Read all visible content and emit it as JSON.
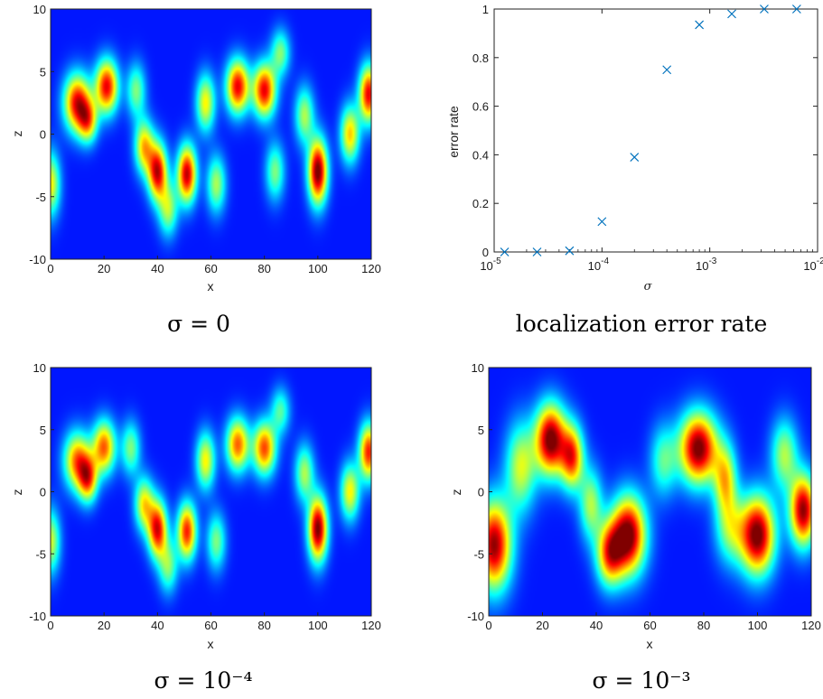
{
  "captions": {
    "top_left": "σ = 0",
    "top_right": "localization error rate",
    "bottom_left": "σ = 10⁻⁴",
    "bottom_right": "σ = 10⁻³"
  },
  "chart_data": [
    {
      "type": "heatmap",
      "id": "heatmap_sigma_0",
      "caption": "σ = 0",
      "xlabel": "x",
      "ylabel": "z",
      "xlim": [
        0,
        120
      ],
      "ylim": [
        -10,
        10
      ],
      "xticks": [
        "0",
        "20",
        "40",
        "60",
        "80",
        "100",
        "120"
      ],
      "yticks": [
        "10",
        "5",
        "0",
        "-5",
        "-10"
      ],
      "colormap": "jet",
      "blobs": [
        {
          "x": 10,
          "z": 2.5,
          "w": 0.85,
          "sx": 3.5,
          "sz": 1.6
        },
        {
          "x": 14,
          "z": 1.0,
          "w": 0.55,
          "sx": 2.5,
          "sz": 1.2
        },
        {
          "x": 21,
          "z": 3.8,
          "w": 0.85,
          "sx": 3.0,
          "sz": 1.5
        },
        {
          "x": 32,
          "z": 3.5,
          "w": 0.4,
          "sx": 2.5,
          "sz": 1.5
        },
        {
          "x": 35,
          "z": -1.0,
          "w": 0.6,
          "sx": 2.5,
          "sz": 1.5
        },
        {
          "x": 40,
          "z": -3.0,
          "w": 0.88,
          "sx": 2.5,
          "sz": 1.6
        },
        {
          "x": 44,
          "z": -6.0,
          "w": 0.45,
          "sx": 2.5,
          "sz": 1.5
        },
        {
          "x": 51,
          "z": -3.2,
          "w": 0.9,
          "sx": 2.5,
          "sz": 1.6
        },
        {
          "x": 58,
          "z": 2.5,
          "w": 0.55,
          "sx": 2.5,
          "sz": 1.6
        },
        {
          "x": 62,
          "z": -4.0,
          "w": 0.45,
          "sx": 2.5,
          "sz": 1.6
        },
        {
          "x": 70,
          "z": 3.8,
          "w": 0.85,
          "sx": 3.0,
          "sz": 1.5
        },
        {
          "x": 80,
          "z": 3.5,
          "w": 0.85,
          "sx": 3.0,
          "sz": 1.5
        },
        {
          "x": 84,
          "z": -3.0,
          "w": 0.4,
          "sx": 2.5,
          "sz": 1.6
        },
        {
          "x": 86,
          "z": 6.5,
          "w": 0.4,
          "sx": 2.5,
          "sz": 1.3
        },
        {
          "x": 95,
          "z": 1.5,
          "w": 0.45,
          "sx": 2.5,
          "sz": 1.6
        },
        {
          "x": 100,
          "z": -3.0,
          "w": 1.0,
          "sx": 2.5,
          "sz": 1.8
        },
        {
          "x": 112,
          "z": 0.0,
          "w": 0.6,
          "sx": 2.5,
          "sz": 1.6
        },
        {
          "x": 119,
          "z": 3.2,
          "w": 0.85,
          "sx": 2.5,
          "sz": 1.6
        },
        {
          "x": 0,
          "z": -4.0,
          "w": 0.55,
          "sx": 2.5,
          "sz": 1.8
        }
      ]
    },
    {
      "type": "scatter",
      "id": "error_rate",
      "caption": "localization error rate",
      "xlabel": "σ",
      "ylabel": "error rate",
      "xscale": "log",
      "xlim": [
        1e-05,
        0.01
      ],
      "ylim": [
        0,
        1
      ],
      "xticks": [
        {
          "value": 1e-05,
          "base": "10",
          "exp": "-5"
        },
        {
          "value": 0.0001,
          "base": "10",
          "exp": "-4"
        },
        {
          "value": 0.001,
          "base": "10",
          "exp": "-3"
        },
        {
          "value": 0.01,
          "base": "10",
          "exp": "-2"
        }
      ],
      "yticks": [
        "0",
        "0.2",
        "0.4",
        "0.6",
        "0.8",
        "1"
      ],
      "marker": "x",
      "color": "#0072BD",
      "x": [
        1.25e-05,
        2.5e-05,
        5e-05,
        0.0001,
        0.0002,
        0.0004,
        0.0008,
        0.0016,
        0.0032,
        0.0064
      ],
      "y": [
        0.0,
        0.0,
        0.005,
        0.125,
        0.39,
        0.75,
        0.935,
        0.98,
        1.0,
        1.0
      ]
    },
    {
      "type": "heatmap",
      "id": "heatmap_sigma_1e-4",
      "caption": "σ = 10⁻⁴",
      "xlabel": "x",
      "ylabel": "z",
      "xlim": [
        0,
        120
      ],
      "ylim": [
        -10,
        10
      ],
      "xticks": [
        "0",
        "20",
        "40",
        "60",
        "80",
        "100",
        "120"
      ],
      "yticks": [
        "10",
        "5",
        "0",
        "-5",
        "-10"
      ],
      "colormap": "jet",
      "blobs": [
        {
          "x": 10,
          "z": 2.5,
          "w": 0.7,
          "sx": 3.5,
          "sz": 1.6
        },
        {
          "x": 14,
          "z": 1.0,
          "w": 0.65,
          "sx": 2.5,
          "sz": 1.3
        },
        {
          "x": 20,
          "z": 3.6,
          "w": 0.72,
          "sx": 3.0,
          "sz": 1.5
        },
        {
          "x": 30,
          "z": 3.5,
          "w": 0.4,
          "sx": 2.5,
          "sz": 1.5
        },
        {
          "x": 35,
          "z": -1.0,
          "w": 0.55,
          "sx": 2.5,
          "sz": 1.5
        },
        {
          "x": 40,
          "z": -3.0,
          "w": 0.85,
          "sx": 2.5,
          "sz": 1.6
        },
        {
          "x": 44,
          "z": -6.0,
          "w": 0.4,
          "sx": 2.5,
          "sz": 1.5
        },
        {
          "x": 51,
          "z": -3.2,
          "w": 0.8,
          "sx": 2.5,
          "sz": 1.6
        },
        {
          "x": 58,
          "z": 2.5,
          "w": 0.55,
          "sx": 2.5,
          "sz": 1.6
        },
        {
          "x": 62,
          "z": -4.0,
          "w": 0.4,
          "sx": 2.5,
          "sz": 1.6
        },
        {
          "x": 70,
          "z": 3.8,
          "w": 0.72,
          "sx": 3.0,
          "sz": 1.5
        },
        {
          "x": 80,
          "z": 3.5,
          "w": 0.75,
          "sx": 3.0,
          "sz": 1.5
        },
        {
          "x": 86,
          "z": 6.5,
          "w": 0.35,
          "sx": 2.5,
          "sz": 1.3
        },
        {
          "x": 95,
          "z": 1.5,
          "w": 0.45,
          "sx": 2.5,
          "sz": 1.6
        },
        {
          "x": 100,
          "z": -3.0,
          "w": 0.98,
          "sx": 2.5,
          "sz": 1.8
        },
        {
          "x": 112,
          "z": 0.0,
          "w": 0.55,
          "sx": 2.5,
          "sz": 1.6
        },
        {
          "x": 119,
          "z": 3.2,
          "w": 0.8,
          "sx": 2.5,
          "sz": 1.6
        },
        {
          "x": 0,
          "z": -4.0,
          "w": 0.5,
          "sx": 2.5,
          "sz": 1.8
        }
      ]
    },
    {
      "type": "heatmap",
      "id": "heatmap_sigma_1e-3",
      "caption": "σ = 10⁻³",
      "xlabel": "x",
      "ylabel": "z",
      "xlim": [
        0,
        120
      ],
      "ylim": [
        -10,
        10
      ],
      "xticks": [
        "0",
        "20",
        "40",
        "60",
        "80",
        "100",
        "120"
      ],
      "yticks": [
        "10",
        "5",
        "0",
        "-5",
        "-10"
      ],
      "colormap": "jet",
      "blobs": [
        {
          "x": 2,
          "z": -4.3,
          "w": 0.95,
          "sx": 4.5,
          "sz": 2.5
        },
        {
          "x": 12,
          "z": 2.0,
          "w": 0.5,
          "sx": 4.0,
          "sz": 2.5
        },
        {
          "x": 23,
          "z": 4.2,
          "w": 1.0,
          "sx": 4.0,
          "sz": 2.0
        },
        {
          "x": 31,
          "z": 2.8,
          "w": 0.75,
          "sx": 3.0,
          "sz": 1.8
        },
        {
          "x": 38,
          "z": -1.0,
          "w": 0.45,
          "sx": 3.0,
          "sz": 2.0
        },
        {
          "x": 52,
          "z": -3.5,
          "w": 1.0,
          "sx": 4.5,
          "sz": 2.2
        },
        {
          "x": 45,
          "z": -5.0,
          "w": 0.7,
          "sx": 3.5,
          "sz": 1.8
        },
        {
          "x": 65,
          "z": 2.5,
          "w": 0.35,
          "sx": 3.5,
          "sz": 2.0
        },
        {
          "x": 78,
          "z": 3.5,
          "w": 1.0,
          "sx": 5.0,
          "sz": 2.0
        },
        {
          "x": 88,
          "z": 1.0,
          "w": 0.55,
          "sx": 3.0,
          "sz": 2.0
        },
        {
          "x": 100,
          "z": -3.5,
          "w": 1.0,
          "sx": 4.5,
          "sz": 2.2
        },
        {
          "x": 110,
          "z": 3.0,
          "w": 0.45,
          "sx": 3.5,
          "sz": 2.0
        },
        {
          "x": 117,
          "z": -1.5,
          "w": 0.95,
          "sx": 3.5,
          "sz": 2.0
        },
        {
          "x": 90,
          "z": -3.0,
          "w": 0.4,
          "sx": 4.0,
          "sz": 2.0
        }
      ]
    }
  ]
}
